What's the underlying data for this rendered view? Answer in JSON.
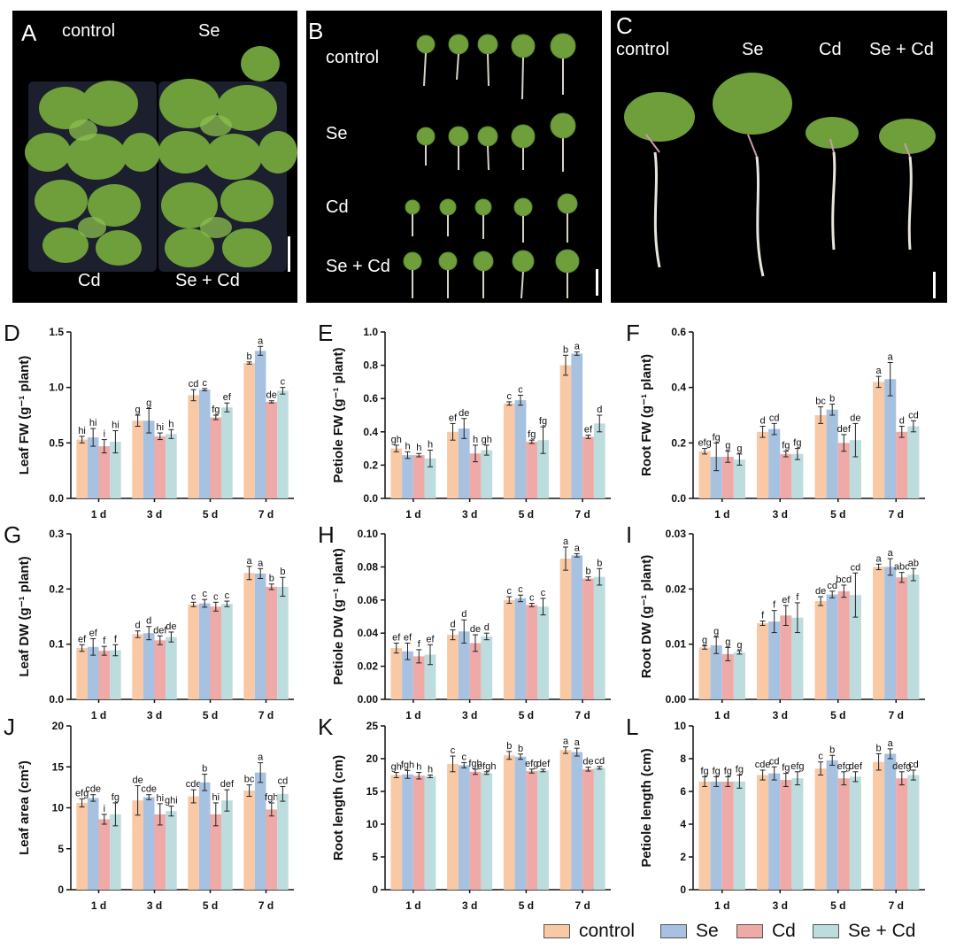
{
  "colors": {
    "control": "#f9c9a5",
    "Se": "#a7c1e1",
    "Cd": "#efa9a6",
    "Se + Cd": "#bcdcde",
    "photo_bg": "#000000",
    "leaf": "#6e9f3a"
  },
  "photos": {
    "A": {
      "letter": "A",
      "labels": [
        "control",
        "Se",
        "Cd",
        "Se + Cd"
      ]
    },
    "B": {
      "letter": "B",
      "labels": [
        "control",
        "Se",
        "Cd",
        "Se + Cd"
      ]
    },
    "C": {
      "letter": "C",
      "labels": [
        "control",
        "Se",
        "Cd",
        "Se + Cd"
      ]
    }
  },
  "legend": {
    "items": [
      "control",
      "Se",
      "Cd",
      "Se + Cd"
    ]
  },
  "chart_data": [
    {
      "panel": "D",
      "type": "bar",
      "ylabel": "Leaf FW (g⁻¹ plant)",
      "categories": [
        "1 d",
        "3 d",
        "5 d",
        "7 d"
      ],
      "ylim": [
        0,
        1.5
      ],
      "yticks": [
        "0.0",
        "0.5",
        "1.0",
        "1.5"
      ],
      "ytick_values": [
        0,
        0.5,
        1.0,
        1.5
      ],
      "series": [
        {
          "name": "control",
          "values": [
            0.53,
            0.7,
            0.93,
            1.22
          ],
          "errors": [
            0.03,
            0.05,
            0.05,
            0.01
          ],
          "letters": [
            "hi",
            "g",
            "cd",
            "b"
          ]
        },
        {
          "name": "Se",
          "values": [
            0.55,
            0.7,
            0.98,
            1.33
          ],
          "errors": [
            0.08,
            0.11,
            0.01,
            0.04
          ],
          "letters": [
            "hi",
            "g",
            "c",
            "a"
          ]
        },
        {
          "name": "Cd",
          "values": [
            0.47,
            0.56,
            0.73,
            0.87
          ],
          "errors": [
            0.06,
            0.03,
            0.02,
            0.01
          ],
          "letters": [
            "i",
            "hi",
            "fg",
            "de"
          ]
        },
        {
          "name": "Se + Cd",
          "values": [
            0.51,
            0.58,
            0.82,
            0.97
          ],
          "errors": [
            0.1,
            0.04,
            0.04,
            0.03
          ],
          "letters": [
            "hi",
            "h",
            "ef",
            "c"
          ]
        }
      ]
    },
    {
      "panel": "E",
      "type": "bar",
      "ylabel": "Petiole FW (g⁻¹ plant)",
      "categories": [
        "1 d",
        "3 d",
        "5 d",
        "7 d"
      ],
      "ylim": [
        0,
        1.0
      ],
      "yticks": [
        "0.0",
        "0.2",
        "0.4",
        "0.6",
        "0.8",
        "1.0"
      ],
      "ytick_values": [
        0,
        0.2,
        0.4,
        0.6,
        0.8,
        1.0
      ],
      "series": [
        {
          "name": "control",
          "values": [
            0.3,
            0.4,
            0.57,
            0.8
          ],
          "errors": [
            0.02,
            0.05,
            0.01,
            0.06
          ],
          "letters": [
            "gh",
            "ef",
            "c",
            "b"
          ]
        },
        {
          "name": "Se",
          "values": [
            0.26,
            0.42,
            0.59,
            0.87
          ],
          "errors": [
            0.02,
            0.06,
            0.03,
            0.01
          ],
          "letters": [
            "h",
            "de",
            "c",
            "a"
          ]
        },
        {
          "name": "Cd",
          "values": [
            0.26,
            0.27,
            0.34,
            0.37
          ],
          "errors": [
            0.01,
            0.05,
            0.01,
            0.01
          ],
          "letters": [
            "h",
            "h",
            "fg",
            "ef"
          ]
        },
        {
          "name": "Se + Cd",
          "values": [
            0.24,
            0.29,
            0.35,
            0.45
          ],
          "errors": [
            0.05,
            0.03,
            0.08,
            0.05
          ],
          "letters": [
            "h",
            "gh",
            "fg",
            "d"
          ]
        }
      ]
    },
    {
      "panel": "F",
      "type": "bar",
      "ylabel": "Root FW (g⁻¹ plant)",
      "categories": [
        "1 d",
        "3 d",
        "5 d",
        "7 d"
      ],
      "ylim": [
        0,
        0.6
      ],
      "yticks": [
        "0.0",
        "0.2",
        "0.4",
        "0.6"
      ],
      "ytick_values": [
        0,
        0.2,
        0.4,
        0.6
      ],
      "series": [
        {
          "name": "control",
          "values": [
            0.17,
            0.24,
            0.3,
            0.42
          ],
          "errors": [
            0.01,
            0.02,
            0.03,
            0.02
          ],
          "letters": [
            "efg",
            "d",
            "bc",
            "a"
          ]
        },
        {
          "name": "Se",
          "values": [
            0.15,
            0.25,
            0.32,
            0.43
          ],
          "errors": [
            0.05,
            0.02,
            0.02,
            0.06
          ],
          "letters": [
            "fg",
            "cd",
            "b",
            "a"
          ]
        },
        {
          "name": "Cd",
          "values": [
            0.15,
            0.16,
            0.2,
            0.24
          ],
          "errors": [
            0.02,
            0.01,
            0.03,
            0.02
          ],
          "letters": [
            "g",
            "fg",
            "def",
            "d"
          ]
        },
        {
          "name": "Se + Cd",
          "values": [
            0.14,
            0.16,
            0.21,
            0.26
          ],
          "errors": [
            0.02,
            0.02,
            0.06,
            0.02
          ],
          "letters": [
            "g",
            "fg",
            "de",
            "cd"
          ]
        }
      ]
    },
    {
      "panel": "G",
      "type": "bar",
      "ylabel": "Leaf DW (g⁻¹ plant)",
      "categories": [
        "1 d",
        "3 d",
        "5 d",
        "7 d"
      ],
      "ylim": [
        0,
        0.3
      ],
      "yticks": [
        "0.0",
        "0.1",
        "0.2",
        "0.3"
      ],
      "ytick_values": [
        0,
        0.1,
        0.2,
        0.3
      ],
      "series": [
        {
          "name": "control",
          "values": [
            0.093,
            0.118,
            0.172,
            0.229
          ],
          "errors": [
            0.006,
            0.006,
            0.004,
            0.012
          ],
          "letters": [
            "ef",
            "d",
            "c",
            "a"
          ]
        },
        {
          "name": "Se",
          "values": [
            0.095,
            0.12,
            0.174,
            0.228
          ],
          "errors": [
            0.015,
            0.012,
            0.007,
            0.009
          ],
          "letters": [
            "ef",
            "d",
            "c",
            "a"
          ]
        },
        {
          "name": "Cd",
          "values": [
            0.088,
            0.107,
            0.168,
            0.204
          ],
          "errors": [
            0.008,
            0.008,
            0.008,
            0.005
          ],
          "letters": [
            "f",
            "def",
            "c",
            "b"
          ]
        },
        {
          "name": "Se + Cd",
          "values": [
            0.089,
            0.113,
            0.173,
            0.204
          ],
          "errors": [
            0.01,
            0.009,
            0.005,
            0.017
          ],
          "letters": [
            "f",
            "de",
            "c",
            "b"
          ]
        }
      ]
    },
    {
      "panel": "H",
      "type": "bar",
      "ylabel": "Petiole DW (g⁻¹ plant)",
      "categories": [
        "1 d",
        "3 d",
        "5 d",
        "7 d"
      ],
      "ylim": [
        0,
        0.1
      ],
      "yticks": [
        "0.00",
        "0.02",
        "0.04",
        "0.06",
        "0.08",
        "0.10"
      ],
      "ytick_values": [
        0,
        0.02,
        0.04,
        0.06,
        0.08,
        0.1
      ],
      "series": [
        {
          "name": "control",
          "values": [
            0.031,
            0.039,
            0.06,
            0.085
          ],
          "errors": [
            0.003,
            0.003,
            0.002,
            0.007
          ],
          "letters": [
            "ef",
            "d",
            "c",
            "a"
          ]
        },
        {
          "name": "Se",
          "values": [
            0.029,
            0.041,
            0.061,
            0.087
          ],
          "errors": [
            0.005,
            0.007,
            0.002,
            0.001
          ],
          "letters": [
            "ef",
            "d",
            "c",
            "a"
          ]
        },
        {
          "name": "Cd",
          "values": [
            0.026,
            0.034,
            0.057,
            0.073
          ],
          "errors": [
            0.004,
            0.005,
            0.001,
            0.001
          ],
          "letters": [
            "f",
            "de",
            "c",
            "b"
          ]
        },
        {
          "name": "Se + Cd",
          "values": [
            0.027,
            0.038,
            0.056,
            0.074
          ],
          "errors": [
            0.006,
            0.002,
            0.005,
            0.005
          ],
          "letters": [
            "ef",
            "d",
            "c",
            "b"
          ]
        }
      ]
    },
    {
      "panel": "I",
      "type": "bar",
      "ylabel": "Root DW (g⁻¹ plant)",
      "categories": [
        "1 d",
        "3 d",
        "5 d",
        "7 d"
      ],
      "ylim": [
        0,
        0.03
      ],
      "yticks": [
        "0.00",
        "0.01",
        "0.02",
        "0.03"
      ],
      "ytick_values": [
        0,
        0.01,
        0.02,
        0.03
      ],
      "series": [
        {
          "name": "control",
          "values": [
            0.0094,
            0.0138,
            0.0178,
            0.024
          ],
          "errors": [
            0.0003,
            0.0004,
            0.0008,
            0.0005
          ],
          "letters": [
            "g",
            "f",
            "de",
            "a"
          ]
        },
        {
          "name": "Se",
          "values": [
            0.0098,
            0.0141,
            0.019,
            0.024
          ],
          "errors": [
            0.0015,
            0.002,
            0.0006,
            0.0015
          ],
          "letters": [
            "g",
            "f",
            "cd",
            "a"
          ]
        },
        {
          "name": "Cd",
          "values": [
            0.0082,
            0.0152,
            0.0196,
            0.0221
          ],
          "errors": [
            0.0012,
            0.0018,
            0.0011,
            0.0009
          ],
          "letters": [
            "g",
            "ef",
            "bcd",
            "abc"
          ]
        },
        {
          "name": "Se + Cd",
          "values": [
            0.0085,
            0.0148,
            0.0189,
            0.0226
          ],
          "errors": [
            0.0003,
            0.0027,
            0.004,
            0.0011
          ],
          "letters": [
            "g",
            "f",
            "cd",
            "ab"
          ]
        }
      ]
    },
    {
      "panel": "J",
      "type": "bar",
      "ylabel": "Leaf area (cm²)",
      "categories": [
        "1 d",
        "3 d",
        "5 d",
        "7 d"
      ],
      "ylim": [
        0,
        20
      ],
      "yticks": [
        "0",
        "5",
        "10",
        "15",
        "20"
      ],
      "ytick_values": [
        0,
        5,
        10,
        15,
        20
      ],
      "series": [
        {
          "name": "control",
          "values": [
            10.6,
            10.9,
            11.4,
            12.1
          ],
          "errors": [
            0.5,
            1.8,
            0.8,
            0.7
          ],
          "letters": [
            "efg",
            "de",
            "cde",
            "bc"
          ]
        },
        {
          "name": "Se",
          "values": [
            11.2,
            11.3,
            13.1,
            14.3
          ],
          "errors": [
            0.4,
            0.3,
            1.0,
            1.2
          ],
          "letters": [
            "cde",
            "cde",
            "b",
            "a"
          ]
        },
        {
          "name": "Cd",
          "values": [
            8.6,
            9.2,
            9.2,
            9.8
          ],
          "errors": [
            0.6,
            1.3,
            1.4,
            0.8
          ],
          "letters": [
            "i",
            "hi",
            "hi",
            "fgh"
          ]
        },
        {
          "name": "Se + Cd",
          "values": [
            9.2,
            9.6,
            10.9,
            11.7
          ],
          "errors": [
            1.4,
            0.6,
            1.3,
            0.9
          ],
          "letters": [
            "fg",
            "ghi",
            "def",
            "cd"
          ]
        }
      ]
    },
    {
      "panel": "K",
      "type": "bar",
      "ylabel": "Root length (cm)",
      "categories": [
        "1 d",
        "3 d",
        "5 d",
        "7 d"
      ],
      "ylim": [
        0,
        25
      ],
      "yticks": [
        "0",
        "5",
        "10",
        "15",
        "20",
        "25"
      ],
      "ytick_values": [
        0,
        5,
        10,
        15,
        20,
        25
      ],
      "series": [
        {
          "name": "control",
          "values": [
            17.5,
            19.2,
            20.5,
            21.3
          ],
          "errors": [
            0.4,
            1.2,
            0.6,
            0.5
          ],
          "letters": [
            "gh",
            "c",
            "b",
            "a"
          ]
        },
        {
          "name": "Se",
          "values": [
            17.6,
            19.0,
            20.3,
            21.0
          ],
          "errors": [
            0.6,
            0.4,
            0.4,
            0.6
          ],
          "letters": [
            "fgh",
            "c",
            "b",
            "a"
          ]
        },
        {
          "name": "Cd",
          "values": [
            17.4,
            18.0,
            18.1,
            18.4
          ],
          "errors": [
            0.5,
            0.4,
            0.3,
            0.3
          ],
          "letters": [
            "h",
            "fgh",
            "efg",
            "de"
          ]
        },
        {
          "name": "Se + Cd",
          "values": [
            17.3,
            17.8,
            18.2,
            18.6
          ],
          "errors": [
            0.2,
            0.2,
            0.2,
            0.2
          ],
          "letters": [
            "h",
            "efgh",
            "def",
            "cd"
          ]
        }
      ]
    },
    {
      "panel": "L",
      "type": "bar",
      "ylabel": "Petiole length (cm)",
      "categories": [
        "1 d",
        "3 d",
        "5 d",
        "7 d"
      ],
      "ylim": [
        0,
        10
      ],
      "yticks": [
        "0",
        "2",
        "4",
        "6",
        "8",
        "10"
      ],
      "ytick_values": [
        0,
        2,
        4,
        6,
        8,
        10
      ],
      "series": [
        {
          "name": "control",
          "values": [
            6.6,
            7.0,
            7.4,
            7.8
          ],
          "errors": [
            0.3,
            0.3,
            0.4,
            0.5
          ],
          "letters": [
            "fg",
            "cde",
            "c",
            "b"
          ]
        },
        {
          "name": "Se",
          "values": [
            6.6,
            7.1,
            7.9,
            8.3
          ],
          "errors": [
            0.3,
            0.4,
            0.3,
            0.3
          ],
          "letters": [
            "fg",
            "cd",
            "b",
            "a"
          ]
        },
        {
          "name": "Cd",
          "values": [
            6.6,
            6.7,
            6.8,
            6.8
          ],
          "errors": [
            0.3,
            0.4,
            0.4,
            0.4
          ],
          "letters": [
            "fg",
            "fg",
            "efg",
            "defg"
          ]
        },
        {
          "name": "Se + Cd",
          "values": [
            6.6,
            6.8,
            6.9,
            7.0
          ],
          "errors": [
            0.4,
            0.4,
            0.3,
            0.3
          ],
          "letters": [
            "fg",
            "efg",
            "def",
            "cd"
          ]
        }
      ]
    }
  ]
}
